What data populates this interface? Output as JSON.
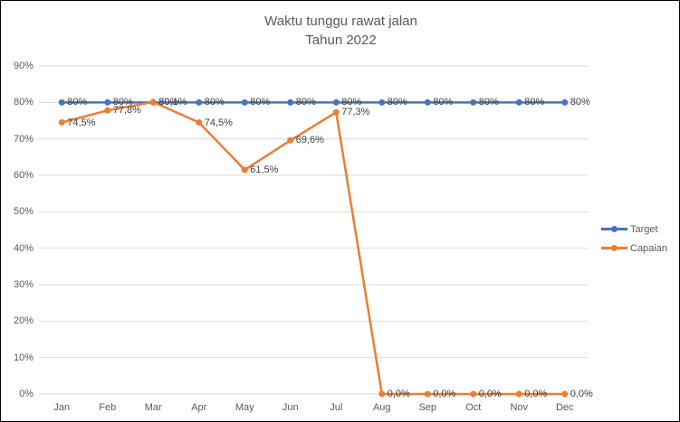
{
  "title": {
    "line1": "Waktu tunggu rawat jalan",
    "line2": "Tahun 2022"
  },
  "chart_data": {
    "type": "line",
    "title": "Waktu tunggu rawat jalan Tahun 2022",
    "categories": [
      "Jan",
      "Feb",
      "Mar",
      "Apr",
      "May",
      "Jun",
      "Jul",
      "Aug",
      "Sep",
      "Oct",
      "Nov",
      "Dec"
    ],
    "series": [
      {
        "name": "Target",
        "color": "#4472C4",
        "values": [
          80,
          80,
          80,
          80,
          80,
          80,
          80,
          80,
          80,
          80,
          80,
          80
        ],
        "labels": [
          "80%",
          "80%",
          "80%",
          "80%",
          "80%",
          "80%",
          "80%",
          "80%",
          "80%",
          "80%",
          "80%",
          "80%"
        ]
      },
      {
        "name": "Capaian",
        "color": "#ED7D31",
        "values": [
          74.5,
          77.8,
          80.1,
          74.5,
          61.5,
          69.6,
          77.3,
          0,
          0,
          0,
          0,
          0
        ],
        "labels": [
          "74,5%",
          "77,8%",
          "80,1%",
          "74,5%",
          "61,5%",
          "69,6%",
          "77,3%",
          "0,0%",
          "0,0%",
          "0,0%",
          "0,0%",
          "0,0%"
        ]
      }
    ],
    "xlabel": "",
    "ylabel": "",
    "ylim": [
      0,
      90
    ],
    "ytick_step": 10,
    "ytick_labels": [
      "0%",
      "10%",
      "20%",
      "30%",
      "40%",
      "50%",
      "60%",
      "70%",
      "80%",
      "90%"
    ],
    "grid": true,
    "legend_position": "right",
    "label_color": "#404040",
    "axis_color": "#595959",
    "grid_color": "#D9D9D9"
  }
}
